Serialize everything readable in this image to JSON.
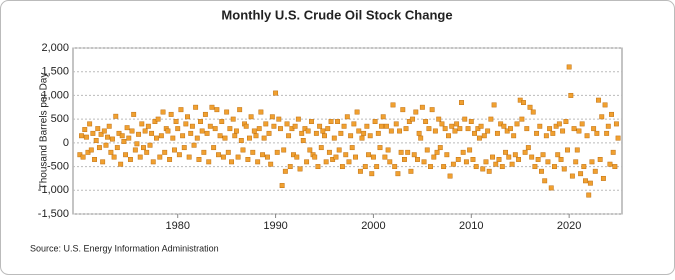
{
  "chart_data": {
    "type": "scatter",
    "title": "Monthly U.S. Crude Oil Stock Change",
    "y_label": "Thousand Barrels per Day",
    "source": "Source: U.S. Energy Information Administration",
    "xlim": [
      1969.3,
      2025.4
    ],
    "xticks": [
      1980,
      1990,
      2000,
      2010,
      2020
    ],
    "ylim": [
      -1500,
      2000
    ],
    "yticks": [
      {
        "value": -1500,
        "label": "-1,500"
      },
      {
        "value": -1000,
        "label": "-1,000"
      },
      -500,
      0,
      500,
      {
        "value": 1000,
        "label": "1,000"
      },
      {
        "value": 1500,
        "label": "1,500"
      },
      {
        "value": 2000,
        "label": "2,000"
      }
    ],
    "grid": true,
    "color": "#f0a030",
    "x": [
      1970,
      1970.17,
      1970.33,
      1970.5,
      1970.67,
      1970.83,
      1971,
      1971.17,
      1971.33,
      1971.5,
      1971.67,
      1971.83,
      1972,
      1972.17,
      1972.33,
      1972.5,
      1972.67,
      1972.83,
      1973,
      1973.17,
      1973.33,
      1973.5,
      1973.67,
      1973.83,
      1974,
      1974.17,
      1974.33,
      1974.5,
      1974.67,
      1974.83,
      1975,
      1975.17,
      1975.33,
      1975.5,
      1975.67,
      1975.83,
      1976,
      1976.17,
      1976.33,
      1976.5,
      1976.67,
      1976.83,
      1977,
      1977.17,
      1977.33,
      1977.5,
      1977.67,
      1977.83,
      1978,
      1978.17,
      1978.33,
      1978.5,
      1978.67,
      1978.83,
      1979,
      1979.17,
      1979.33,
      1979.5,
      1979.67,
      1979.83,
      1980,
      1980.17,
      1980.33,
      1980.5,
      1980.67,
      1980.83,
      1981,
      1981.17,
      1981.33,
      1981.5,
      1981.67,
      1981.83,
      1982,
      1982.17,
      1982.33,
      1982.5,
      1982.67,
      1982.83,
      1983,
      1983.17,
      1983.33,
      1983.5,
      1983.67,
      1983.83,
      1984,
      1984.17,
      1984.33,
      1984.5,
      1984.67,
      1984.83,
      1985,
      1985.17,
      1985.33,
      1985.5,
      1985.67,
      1985.83,
      1986,
      1986.17,
      1986.33,
      1986.5,
      1986.67,
      1986.83,
      1987,
      1987.17,
      1987.33,
      1987.5,
      1987.67,
      1987.83,
      1988,
      1988.17,
      1988.33,
      1988.5,
      1988.67,
      1988.83,
      1989,
      1989.17,
      1989.33,
      1989.5,
      1989.67,
      1989.83,
      1990,
      1990.17,
      1990.33,
      1990.5,
      1990.67,
      1990.83,
      1991,
      1991.17,
      1991.33,
      1991.5,
      1991.67,
      1991.83,
      1992,
      1992.17,
      1992.33,
      1992.5,
      1992.67,
      1992.83,
      1993,
      1993.17,
      1993.33,
      1993.5,
      1993.67,
      1993.83,
      1994,
      1994.17,
      1994.33,
      1994.5,
      1994.67,
      1994.83,
      1995,
      1995.17,
      1995.33,
      1995.5,
      1995.67,
      1995.83,
      1996,
      1996.17,
      1996.33,
      1996.5,
      1996.67,
      1996.83,
      1997,
      1997.17,
      1997.33,
      1997.5,
      1997.67,
      1997.83,
      1998,
      1998.17,
      1998.33,
      1998.5,
      1998.67,
      1998.83,
      1999,
      1999.17,
      1999.33,
      1999.5,
      1999.67,
      1999.83,
      2000,
      2000.17,
      2000.33,
      2000.5,
      2000.67,
      2000.83,
      2001,
      2001.17,
      2001.33,
      2001.5,
      2001.67,
      2001.83,
      2002,
      2002.17,
      2002.33,
      2002.5,
      2002.67,
      2002.83,
      2003,
      2003.17,
      2003.33,
      2003.5,
      2003.67,
      2003.83,
      2004,
      2004.17,
      2004.33,
      2004.5,
      2004.67,
      2004.83,
      2005,
      2005.17,
      2005.33,
      2005.5,
      2005.67,
      2005.83,
      2006,
      2006.17,
      2006.33,
      2006.5,
      2006.67,
      2006.83,
      2007,
      2007.17,
      2007.33,
      2007.5,
      2007.67,
      2007.83,
      2008,
      2008.17,
      2008.33,
      2008.5,
      2008.67,
      2008.83,
      2009,
      2009.17,
      2009.33,
      2009.5,
      2009.67,
      2009.83,
      2010,
      2010.17,
      2010.33,
      2010.5,
      2010.67,
      2010.83,
      2011,
      2011.17,
      2011.33,
      2011.5,
      2011.67,
      2011.83,
      2012,
      2012.17,
      2012.33,
      2012.5,
      2012.67,
      2012.83,
      2013,
      2013.17,
      2013.33,
      2013.5,
      2013.67,
      2013.83,
      2014,
      2014.17,
      2014.33,
      2014.5,
      2014.67,
      2014.83,
      2015,
      2015.17,
      2015.33,
      2015.5,
      2015.67,
      2015.83,
      2016,
      2016.17,
      2016.33,
      2016.5,
      2016.67,
      2016.83,
      2017,
      2017.17,
      2017.33,
      2017.5,
      2017.67,
      2017.83,
      2018,
      2018.17,
      2018.33,
      2018.5,
      2018.67,
      2018.83,
      2019,
      2019.17,
      2019.33,
      2019.5,
      2019.67,
      2019.83,
      2020,
      2020.17,
      2020.33,
      2020.5,
      2020.67,
      2020.83,
      2021,
      2021.17,
      2021.33,
      2021.5,
      2021.67,
      2021.83,
      2022,
      2022.17,
      2022.33,
      2022.5,
      2022.67,
      2022.83,
      2023,
      2023.17,
      2023.33,
      2023.5,
      2023.67,
      2023.83,
      2024,
      2024.17,
      2024.33,
      2024.5,
      2024.67,
      2024.83,
      2025
    ],
    "values": [
      -250,
      150,
      -300,
      280,
      120,
      -200,
      400,
      -150,
      200,
      -350,
      50,
      300,
      -100,
      180,
      -400,
      250,
      -50,
      120,
      350,
      -200,
      80,
      -300,
      560,
      -100,
      200,
      -450,
      150,
      30,
      -250,
      320,
      100,
      -350,
      250,
      600,
      -150,
      -20,
      180,
      -300,
      400,
      -100,
      250,
      -200,
      350,
      -50,
      200,
      -400,
      450,
      100,
      500,
      -300,
      150,
      650,
      -200,
      300,
      250,
      -350,
      600,
      100,
      -150,
      450,
      300,
      -250,
      700,
      150,
      -100,
      400,
      550,
      -300,
      200,
      350,
      -50,
      750,
      100,
      -350,
      450,
      250,
      -200,
      600,
      200,
      -400,
      350,
      750,
      -100,
      300,
      700,
      -250,
      150,
      450,
      -300,
      100,
      650,
      -200,
      300,
      -400,
      500,
      150,
      250,
      -300,
      700,
      50,
      -150,
      400,
      350,
      -350,
      100,
      550,
      -200,
      250,
      150,
      -400,
      300,
      650,
      -250,
      100,
      400,
      -300,
      200,
      -450,
      550,
      350,
      1050,
      -200,
      500,
      300,
      -900,
      -150,
      -600,
      400,
      150,
      -500,
      300,
      -250,
      350,
      -300,
      500,
      -550,
      200,
      50,
      300,
      -400,
      250,
      -150,
      450,
      -250,
      -300,
      200,
      -500,
      350,
      -100,
      250,
      150,
      -400,
      300,
      -200,
      450,
      -350,
      100,
      -300,
      450,
      -150,
      200,
      -500,
      350,
      -250,
      550,
      -400,
      150,
      -100,
      400,
      -300,
      650,
      250,
      -600,
      100,
      200,
      -500,
      350,
      -250,
      150,
      -650,
      -300,
      450,
      -500,
      200,
      -100,
      350,
      550,
      -300,
      350,
      -150,
      -400,
      250,
      800,
      -500,
      400,
      -650,
      250,
      -200,
      700,
      -350,
      300,
      -200,
      450,
      -600,
      500,
      -250,
      650,
      -350,
      200,
      100,
      750,
      -400,
      450,
      -150,
      300,
      -500,
      700,
      -300,
      250,
      -200,
      500,
      -100,
      400,
      -500,
      300,
      -250,
      150,
      -700,
      350,
      -450,
      250,
      400,
      -350,
      300,
      850,
      -200,
      500,
      -400,
      300,
      -150,
      450,
      -350,
      200,
      -500,
      300,
      100,
      350,
      -550,
      150,
      -400,
      250,
      -600,
      500,
      -300,
      800,
      -450,
      200,
      -350,
      400,
      -500,
      350,
      -200,
      250,
      -300,
      300,
      -450,
      150,
      -250,
      400,
      -350,
      900,
      500,
      850,
      -200,
      300,
      -100,
      750,
      -300,
      650,
      -500,
      200,
      -350,
      350,
      -600,
      -250,
      -800,
      150,
      -400,
      300,
      -950,
      200,
      -500,
      350,
      -250,
      400,
      -350,
      250,
      -550,
      450,
      -150,
      1600,
      1000,
      -700,
      300,
      -400,
      -150,
      250,
      -650,
      400,
      -500,
      -800,
      150,
      -1100,
      -850,
      -400,
      300,
      -600,
      200,
      900,
      -350,
      550,
      -750,
      800,
      200,
      350,
      -450,
      600,
      -200,
      -500,
      400,
      100
    ]
  }
}
